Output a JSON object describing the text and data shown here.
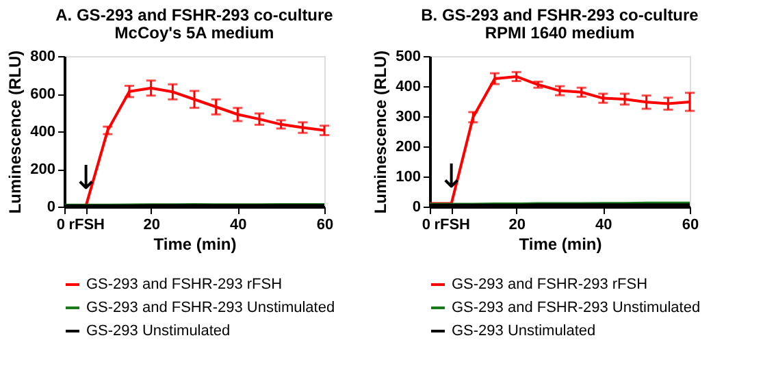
{
  "chart_data": [
    {
      "type": "line",
      "title": "A. GS-293 and FSHR-293 co-culture",
      "subtitle": "McCoy's 5A medium",
      "xlabel": "Time (min)",
      "ylabel": "Luminescence (RLU)",
      "x": [
        0,
        5,
        10,
        15,
        20,
        25,
        30,
        35,
        40,
        45,
        50,
        55,
        60
      ],
      "series": [
        {
          "name": "GS-293 and FSHR-293 rFSH",
          "color": "#ff0000",
          "values": [
            5,
            5,
            405,
            612,
            630,
            610,
            570,
            530,
            490,
            465,
            437,
            420,
            405
          ],
          "errors": [
            null,
            null,
            20,
            30,
            40,
            40,
            45,
            40,
            35,
            30,
            22,
            28,
            25
          ]
        },
        {
          "name": "GS-293 and FSHR-293 Unstimulated",
          "color": "#1a7a1a",
          "values": [
            8,
            8,
            8,
            9,
            10,
            10,
            11,
            10,
            10,
            10,
            11,
            11,
            11
          ]
        },
        {
          "name": "GS-293 Unstimulated",
          "color": "#000000",
          "values": [
            5,
            5,
            5,
            5,
            6,
            6,
            6,
            6,
            6,
            6,
            6,
            6,
            6
          ]
        }
      ],
      "xlim": [
        0,
        60
      ],
      "xticks": [
        0,
        {
          "value": 5,
          "label": "rFSH"
        },
        20,
        40,
        60
      ],
      "ylim": [
        0,
        800
      ],
      "yticks": [
        0,
        200,
        400,
        600,
        800
      ],
      "annotations": [
        {
          "text": "↓",
          "x": 5,
          "y": 60
        }
      ],
      "legend": "bottom",
      "grid": false
    },
    {
      "type": "line",
      "title": "B. GS-293 and FSHR-293 co-culture",
      "subtitle": "RPMI 1640 medium",
      "xlabel": "Time (min)",
      "ylabel": "Luminescence (RLU)",
      "x": [
        0,
        5,
        10,
        15,
        20,
        25,
        30,
        35,
        40,
        45,
        50,
        55,
        60
      ],
      "series": [
        {
          "name": "GS-293 and FSHR-293  rFSH",
          "color": "#ff0000",
          "values": [
            10,
            10,
            297,
            425,
            432,
            405,
            385,
            380,
            360,
            357,
            347,
            342,
            348
          ],
          "errors": [
            null,
            null,
            17,
            18,
            15,
            10,
            15,
            15,
            15,
            18,
            22,
            20,
            30
          ]
        },
        {
          "name": "GS-293 and FSHR-293 Unstimulated",
          "color": "#1a7a1a",
          "values": [
            8,
            8,
            8,
            9,
            9,
            10,
            10,
            10,
            11,
            11,
            12,
            12,
            12
          ]
        },
        {
          "name": "GS-293 Unstimulated",
          "color": "#000000",
          "values": [
            5,
            5,
            5,
            5,
            5,
            6,
            6,
            6,
            6,
            6,
            6,
            6,
            6
          ]
        }
      ],
      "xlim": [
        0,
        60
      ],
      "xticks": [
        0,
        {
          "value": 5,
          "label": "rFSH"
        },
        20,
        40,
        60
      ],
      "ylim": [
        0,
        500
      ],
      "yticks": [
        0,
        100,
        200,
        300,
        400,
        500
      ],
      "annotations": [
        {
          "text": "↓",
          "x": 5,
          "y": 40
        }
      ],
      "legend": "bottom",
      "grid": false
    }
  ]
}
